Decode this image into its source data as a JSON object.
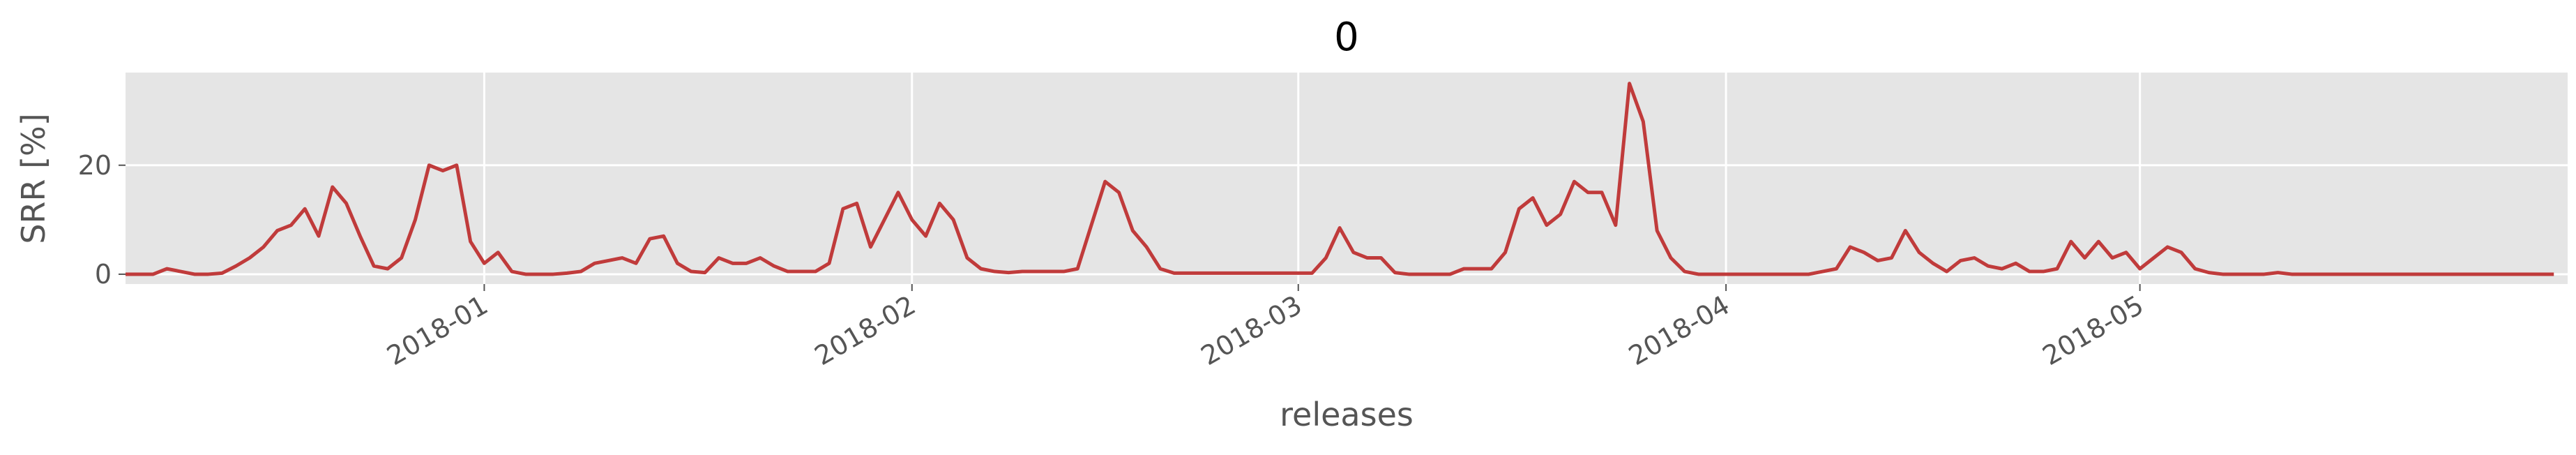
{
  "chart_data": {
    "type": "line",
    "title": "0",
    "x_label": "releases",
    "y_label": "SRR [%]",
    "x": [
      "2017-12-06",
      "2017-12-07",
      "2017-12-08",
      "2017-12-09",
      "2017-12-10",
      "2017-12-11",
      "2017-12-12",
      "2017-12-13",
      "2017-12-14",
      "2017-12-15",
      "2017-12-16",
      "2017-12-17",
      "2017-12-18",
      "2017-12-19",
      "2017-12-20",
      "2017-12-21",
      "2017-12-22",
      "2017-12-23",
      "2017-12-24",
      "2017-12-25",
      "2017-12-26",
      "2017-12-27",
      "2017-12-28",
      "2017-12-29",
      "2017-12-30",
      "2017-12-31",
      "2018-01-01",
      "2018-01-02",
      "2018-01-03",
      "2018-01-04",
      "2018-01-05",
      "2018-01-06",
      "2018-01-07",
      "2018-01-08",
      "2018-01-09",
      "2018-01-10",
      "2018-01-11",
      "2018-01-12",
      "2018-01-13",
      "2018-01-14",
      "2018-01-15",
      "2018-01-16",
      "2018-01-17",
      "2018-01-18",
      "2018-01-19",
      "2018-01-20",
      "2018-01-21",
      "2018-01-22",
      "2018-01-23",
      "2018-01-24",
      "2018-01-25",
      "2018-01-26",
      "2018-01-27",
      "2018-01-28",
      "2018-01-29",
      "2018-01-30",
      "2018-01-31",
      "2018-02-01",
      "2018-02-02",
      "2018-02-03",
      "2018-02-04",
      "2018-02-05",
      "2018-02-06",
      "2018-02-07",
      "2018-02-08",
      "2018-02-09",
      "2018-02-10",
      "2018-02-11",
      "2018-02-12",
      "2018-02-13",
      "2018-02-14",
      "2018-02-15",
      "2018-02-16",
      "2018-02-17",
      "2018-02-18",
      "2018-02-19",
      "2018-02-20",
      "2018-02-21",
      "2018-02-22",
      "2018-02-23",
      "2018-02-24",
      "2018-02-25",
      "2018-02-26",
      "2018-02-27",
      "2018-02-28",
      "2018-03-01",
      "2018-03-02",
      "2018-03-03",
      "2018-03-04",
      "2018-03-05",
      "2018-03-06",
      "2018-03-07",
      "2018-03-08",
      "2018-03-09",
      "2018-03-10",
      "2018-03-11",
      "2018-03-12",
      "2018-03-13",
      "2018-03-14",
      "2018-03-15",
      "2018-03-16",
      "2018-03-17",
      "2018-03-18",
      "2018-03-19",
      "2018-03-20",
      "2018-03-21",
      "2018-03-22",
      "2018-03-23",
      "2018-03-24",
      "2018-03-25",
      "2018-03-26",
      "2018-03-27",
      "2018-03-28",
      "2018-03-29",
      "2018-03-30",
      "2018-03-31",
      "2018-04-01",
      "2018-04-02",
      "2018-04-03",
      "2018-04-04",
      "2018-04-05",
      "2018-04-06",
      "2018-04-07",
      "2018-04-08",
      "2018-04-09",
      "2018-04-10",
      "2018-04-11",
      "2018-04-12",
      "2018-04-13",
      "2018-04-14",
      "2018-04-15",
      "2018-04-16",
      "2018-04-17",
      "2018-04-18",
      "2018-04-19",
      "2018-04-20",
      "2018-04-21",
      "2018-04-22",
      "2018-04-23",
      "2018-04-24",
      "2018-04-25",
      "2018-04-26",
      "2018-04-27",
      "2018-04-28",
      "2018-04-29",
      "2018-04-30",
      "2018-05-01",
      "2018-05-02",
      "2018-05-03",
      "2018-05-04",
      "2018-05-05",
      "2018-05-06",
      "2018-05-07",
      "2018-05-08",
      "2018-05-09",
      "2018-05-10",
      "2018-05-11",
      "2018-05-12",
      "2018-05-13",
      "2018-05-14",
      "2018-05-15",
      "2018-05-16",
      "2018-05-17",
      "2018-05-18",
      "2018-05-19",
      "2018-05-20",
      "2018-05-21",
      "2018-05-22",
      "2018-05-23",
      "2018-05-24",
      "2018-05-25",
      "2018-05-26",
      "2018-05-27",
      "2018-05-28",
      "2018-05-29",
      "2018-05-30",
      "2018-05-31"
    ],
    "values": [
      0,
      0,
      0,
      1,
      0.5,
      0,
      0,
      0.2,
      1.5,
      3,
      5,
      8,
      9,
      12,
      7,
      16,
      13,
      7,
      1.5,
      1,
      3,
      10,
      20,
      19,
      20,
      6,
      2,
      4,
      0.5,
      0,
      0,
      0,
      0.2,
      0.5,
      2,
      2.5,
      3,
      2,
      6.5,
      7,
      2,
      0.5,
      0.3,
      3,
      2,
      2,
      3,
      1.5,
      0.5,
      0.5,
      0.5,
      2,
      12,
      13,
      5,
      10,
      15,
      10,
      7,
      13,
      10,
      3,
      1,
      0.5,
      0.3,
      0.5,
      0.5,
      0.5,
      0.5,
      1,
      9,
      17,
      15,
      8,
      5,
      1,
      0.2,
      0.2,
      0.2,
      0.2,
      0.2,
      0.2,
      0.2,
      0.2,
      0.2,
      0.2,
      0.2,
      3,
      8.5,
      4,
      3,
      3,
      0.3,
      0,
      0,
      0,
      0,
      1,
      1,
      1,
      4,
      12,
      14,
      9,
      11,
      17,
      15,
      15,
      9,
      35,
      28,
      8,
      3,
      0.5,
      0,
      0,
      0,
      0,
      0,
      0,
      0,
      0,
      0,
      0.5,
      1,
      5,
      4,
      2.5,
      3,
      8,
      4,
      2,
      0.5,
      2.5,
      3,
      1.5,
      1,
      2,
      0.5,
      0.5,
      1,
      6,
      3,
      6,
      3,
      4,
      1,
      3,
      5,
      4,
      1,
      0.3,
      0,
      0,
      0,
      0,
      0.3,
      0,
      0,
      0,
      0,
      0,
      0,
      0,
      0,
      0,
      0,
      0,
      0,
      0,
      0,
      0,
      0,
      0,
      0,
      0,
      0
    ],
    "color": "#c03b3b",
    "xlim": [
      "2017-12-06",
      "2018-06-01"
    ],
    "xticks": [
      "2018-01",
      "2018-02",
      "2018-03",
      "2018-04",
      "2018-05"
    ],
    "ylim": [
      -1.8,
      37
    ],
    "yticks": [
      0,
      20
    ],
    "grid": true
  }
}
